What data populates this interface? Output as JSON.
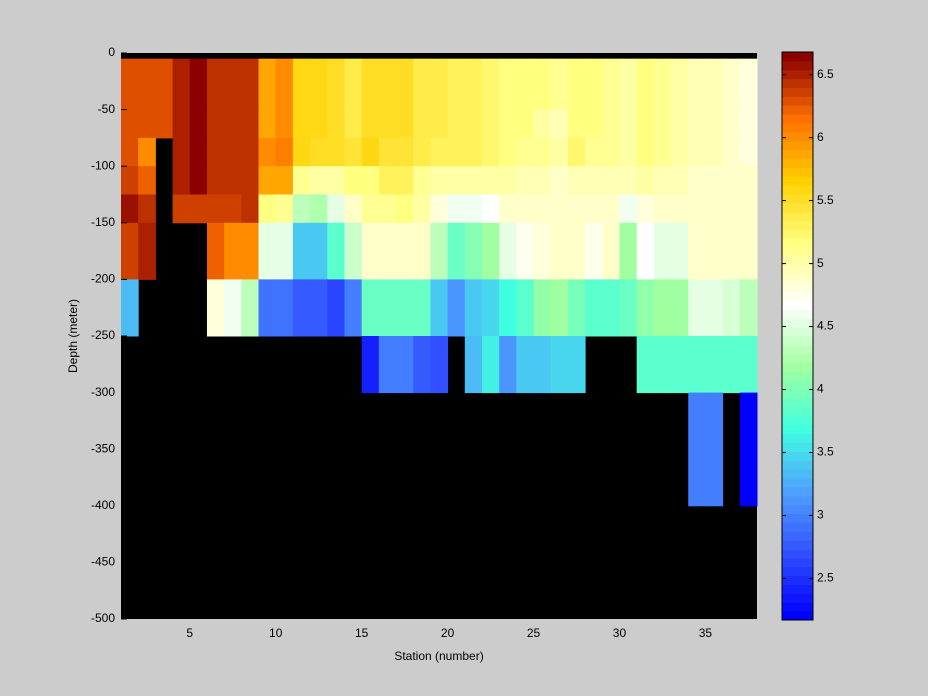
{
  "chart_data": {
    "type": "heatmap",
    "xlabel": "Station (number)",
    "ylabel": "Depth (meter)",
    "x": [
      1,
      2,
      3,
      4,
      5,
      6,
      7,
      8,
      9,
      10,
      11,
      12,
      13,
      14,
      15,
      16,
      17,
      18,
      19,
      20,
      21,
      22,
      23,
      24,
      25,
      26,
      27,
      28,
      29,
      30,
      31,
      32,
      33,
      34,
      35,
      36,
      37,
      38
    ],
    "y": [
      -5,
      -50,
      -75,
      -100,
      -125,
      -150,
      -200,
      -250,
      -300,
      -400
    ],
    "values": [
      [
        6.3,
        6.3,
        6.3,
        6.5,
        6.65,
        6.45,
        6.45,
        6.45,
        5.9,
        6.0,
        5.6,
        5.6,
        5.5,
        5.4,
        5.55,
        5.5,
        5.5,
        5.4,
        5.35,
        5.3,
        5.3,
        5.25,
        5.2,
        5.15,
        5.15,
        5.1,
        5.15,
        5.2,
        5.1,
        5.05,
        5.2,
        5.1,
        5.0,
        4.95,
        4.95,
        4.9,
        4.8
      ],
      [
        6.3,
        6.3,
        6.3,
        6.5,
        6.65,
        6.45,
        6.45,
        6.45,
        5.9,
        6.0,
        5.6,
        5.6,
        5.5,
        5.4,
        5.55,
        5.5,
        5.5,
        5.4,
        5.35,
        5.3,
        5.3,
        5.25,
        5.2,
        5.15,
        5.0,
        4.95,
        5.15,
        5.2,
        5.1,
        5.05,
        5.2,
        5.1,
        5.0,
        4.95,
        4.95,
        4.9,
        4.8
      ],
      [
        6.3,
        6.0,
        null,
        6.5,
        6.65,
        6.45,
        6.45,
        6.45,
        6.0,
        6.1,
        5.6,
        5.55,
        5.5,
        5.45,
        5.6,
        5.45,
        5.45,
        5.35,
        5.3,
        5.3,
        5.3,
        5.25,
        5.2,
        5.1,
        5.1,
        5.05,
        5.25,
        5.1,
        5.1,
        5.05,
        5.2,
        5.1,
        5.0,
        4.95,
        4.95,
        4.9,
        4.8
      ],
      [
        6.35,
        6.2,
        null,
        6.5,
        6.65,
        6.45,
        6.45,
        6.45,
        5.9,
        5.85,
        5.1,
        5.05,
        5.05,
        5.2,
        5.2,
        5.3,
        5.3,
        5.1,
        5.05,
        5.0,
        5.0,
        5.0,
        5.0,
        4.95,
        4.95,
        4.9,
        4.95,
        4.95,
        4.95,
        4.95,
        5.0,
        4.95,
        4.95,
        4.9,
        4.9,
        4.9,
        4.85
      ],
      [
        6.6,
        6.45,
        null,
        6.35,
        6.35,
        6.35,
        6.35,
        6.4,
        5.2,
        5.1,
        4.3,
        4.25,
        4.55,
        4.9,
        5.1,
        5.1,
        5.2,
        5.0,
        4.8,
        4.6,
        4.6,
        4.7,
        4.85,
        4.9,
        4.9,
        4.85,
        4.9,
        4.9,
        4.9,
        4.6,
        4.8,
        4.9,
        4.9,
        4.85,
        4.85,
        4.85,
        4.85
      ],
      [
        6.35,
        6.5,
        null,
        null,
        null,
        6.2,
        6.0,
        6.0,
        4.5,
        4.55,
        3.4,
        3.4,
        3.8,
        4.4,
        4.85,
        4.85,
        4.85,
        4.85,
        4.3,
        3.9,
        4.05,
        4.15,
        4.5,
        4.75,
        4.8,
        4.85,
        4.85,
        4.75,
        4.9,
        4.2,
        4.7,
        4.55,
        4.5,
        4.85,
        4.85,
        4.85,
        4.9
      ],
      [
        3.3,
        null,
        null,
        null,
        null,
        4.8,
        4.6,
        4.3,
        2.9,
        2.9,
        2.75,
        2.75,
        2.6,
        3.0,
        3.9,
        3.9,
        3.9,
        3.9,
        3.4,
        3.1,
        3.4,
        3.5,
        3.7,
        3.85,
        4.1,
        4.15,
        3.95,
        3.8,
        3.85,
        3.9,
        4.1,
        4.15,
        4.2,
        4.5,
        4.5,
        4.45,
        4.3
      ],
      [
        null,
        null,
        null,
        null,
        null,
        null,
        null,
        null,
        null,
        null,
        null,
        null,
        null,
        null,
        2.4,
        3.0,
        3.0,
        2.8,
        2.7,
        null,
        3.3,
        3.6,
        3.1,
        3.4,
        3.4,
        3.45,
        3.45,
        null,
        null,
        null,
        3.85,
        3.85,
        3.85,
        3.85,
        3.85,
        3.85,
        3.85
      ],
      [
        null,
        null,
        null,
        null,
        null,
        null,
        null,
        null,
        null,
        null,
        null,
        null,
        null,
        null,
        null,
        null,
        null,
        null,
        null,
        null,
        null,
        null,
        null,
        null,
        null,
        null,
        null,
        null,
        null,
        null,
        null,
        null,
        null,
        3.0,
        3.0,
        null,
        2.2
      ]
    ],
    "xlim": [
      1,
      38
    ],
    "xticks": [
      5,
      10,
      15,
      20,
      25,
      30,
      35
    ],
    "ylim": [
      -500,
      0
    ],
    "yticks": [
      0,
      -50,
      -100,
      -150,
      -200,
      -250,
      -300,
      -350,
      -400,
      -450,
      -500
    ],
    "clim": [
      2.17,
      6.68
    ],
    "cticks": [
      2.5,
      3,
      3.5,
      4,
      4.5,
      5,
      5.5,
      6,
      6.5
    ],
    "colormap": [
      "#0000ff",
      "#3050ff",
      "#50a0ff",
      "#40ffe0",
      "#a0ffa0",
      "#ffffff",
      "#ffff80",
      "#ffd000",
      "#ff7000",
      "#8b0000"
    ],
    "missing_color": "#000000"
  }
}
